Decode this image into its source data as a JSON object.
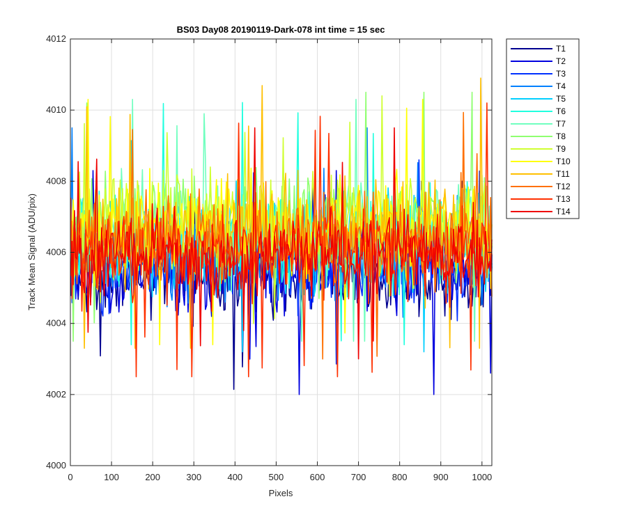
{
  "chart_data": {
    "type": "line",
    "title": "BS03 Day08 20190119-Dark-078 int time = 15 sec",
    "xlabel": "Pixels",
    "ylabel": "Track Mean Signal (ADU/pix)",
    "xlim": [
      0,
      1024
    ],
    "ylim": [
      4000,
      4012
    ],
    "xticks": [
      0,
      100,
      200,
      300,
      400,
      500,
      600,
      700,
      800,
      900,
      1000
    ],
    "yticks": [
      4000,
      4002,
      4004,
      4006,
      4008,
      4010,
      4012
    ],
    "grid": true,
    "legend_position": "outside-top-right",
    "series": [
      {
        "name": "T1",
        "color": "#00008f",
        "mean": 4005.3,
        "spread": 1.0,
        "min": 4001.5,
        "max": 4008.0
      },
      {
        "name": "T2",
        "color": "#0000df",
        "mean": 4005.5,
        "spread": 1.0,
        "min": 4002.0,
        "max": 4008.3
      },
      {
        "name": "T3",
        "color": "#0030ff",
        "mean": 4005.6,
        "spread": 1.0,
        "min": 4002.5,
        "max": 4008.6
      },
      {
        "name": "T4",
        "color": "#0080ff",
        "mean": 4006.0,
        "spread": 1.1,
        "min": 4003.0,
        "max": 4009.5
      },
      {
        "name": "T5",
        "color": "#00cfff",
        "mean": 4006.3,
        "spread": 1.2,
        "min": 4003.2,
        "max": 4011.0
      },
      {
        "name": "T6",
        "color": "#20ffdf",
        "mean": 4006.5,
        "spread": 1.2,
        "min": 4003.4,
        "max": 4010.5
      },
      {
        "name": "T7",
        "color": "#70ffbf",
        "mean": 4006.6,
        "spread": 1.2,
        "min": 4003.5,
        "max": 4010.3
      },
      {
        "name": "T8",
        "color": "#8fff70",
        "mean": 4006.8,
        "spread": 1.2,
        "min": 4003.5,
        "max": 4010.5
      },
      {
        "name": "T9",
        "color": "#cfff30",
        "mean": 4006.8,
        "spread": 1.2,
        "min": 4003.5,
        "max": 4010.4
      },
      {
        "name": "T10",
        "color": "#ffff00",
        "mean": 4006.7,
        "spread": 1.2,
        "min": 4003.4,
        "max": 4010.3
      },
      {
        "name": "T11",
        "color": "#ffbf00",
        "mean": 4006.5,
        "spread": 1.2,
        "min": 4003.3,
        "max": 4010.9
      },
      {
        "name": "T12",
        "color": "#ff7000",
        "mean": 4006.3,
        "spread": 1.1,
        "min": 4003.0,
        "max": 4010.8
      },
      {
        "name": "T13",
        "color": "#ff3000",
        "mean": 4006.0,
        "spread": 1.1,
        "min": 4002.5,
        "max": 4010.5
      },
      {
        "name": "T14",
        "color": "#ef0000",
        "mean": 4005.9,
        "spread": 1.0,
        "min": 4002.4,
        "max": 4009.5
      }
    ]
  }
}
